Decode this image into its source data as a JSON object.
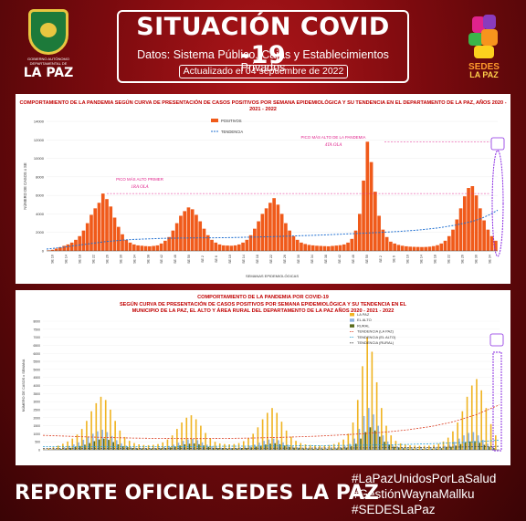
{
  "header": {
    "title": "SITUACIÓN COVID -19",
    "subtitle": "Datos: Sistema Público, Cajas y Establecimientos Privados",
    "updated": "Actualizado el  04 septiembre  de 2022",
    "logo_left_caption": "GOBIERNO AUTÓNOMO DEPARTAMENTAL DE",
    "logo_left_name": "LA PAZ",
    "logo_right_line1": "SEDES",
    "logo_right_line2": "LA PAZ"
  },
  "footer": {
    "report": "REPORTE OFICIAL SEDES LA PAZ",
    "hashtags": [
      "#LaPazUnidosPorLaSalud",
      "#GestiónWaynaMallku",
      "#SEDESLaPaz"
    ]
  },
  "colors": {
    "background": "#8b0c10",
    "positivos": "#f05a1a",
    "tendencia": "#1f6fd1",
    "lapaz": "#f0b423",
    "elalto": "#8fb3e0",
    "rural": "#5a6b1c",
    "annotation": "#e0238c"
  },
  "chart_data": [
    {
      "type": "bar",
      "title": "COMPORTAMIENTO DE LA PANDEMIA SEGÚN CURVA DE PRESENTACIÓN DE CASOS POSITIVOS POR SEMANA EPIDEMIOLÓGICA Y SU TENDENCIA EN EL DEPARTAMENTO DE LA PAZ, AÑOS 2020 - 2021 - 2022",
      "xlabel": "SEMANAS EPIDEMIOLÓGICAS",
      "ylabel": "NÚMERO DE CASOS x SE",
      "ylim": [
        0,
        14000
      ],
      "yticks": [
        0,
        2000,
        4000,
        6000,
        8000,
        10000,
        12000,
        14000
      ],
      "legend": [
        "POSITIVOS",
        "TENDENCIA"
      ],
      "legend_position": "top-center",
      "annotations": [
        {
          "text": "PICO MÁS ALTO PRIMER",
          "text2": "1RA OLA"
        },
        {
          "text": "PICO MÁS ALTO DE LA PANDEMIA",
          "text2": "4TA OLA"
        }
      ],
      "x_labels": [
        "SE 10",
        "SE 14",
        "SE 18",
        "SE 22",
        "SE 26",
        "SE 30",
        "SE 34",
        "SE 38",
        "SE 42",
        "SE 46",
        "SE 50",
        "SE 2",
        "SE 6",
        "SE 10",
        "SE 14",
        "SE 18",
        "SE 22",
        "SE 26",
        "SE 30",
        "SE 34",
        "SE 38",
        "SE 42",
        "SE 46",
        "SE 50",
        "SE 2",
        "SE 6",
        "SE 10",
        "SE 14",
        "SE 18",
        "SE 22",
        "SE 26",
        "SE 30",
        "SE 34"
      ],
      "series": [
        {
          "name": "POSITIVOS",
          "values": [
            60,
            120,
            250,
            400,
            550,
            700,
            900,
            1200,
            1600,
            2200,
            3000,
            3900,
            4600,
            5200,
            6200,
            5600,
            4800,
            3600,
            2600,
            1800,
            1200,
            900,
            700,
            600,
            560,
            520,
            500,
            540,
            600,
            800,
            1100,
            1500,
            2200,
            3000,
            3800,
            4300,
            4700,
            4500,
            3900,
            3200,
            2400,
            1700,
            1200,
            900,
            700,
            600,
            580,
            560,
            600,
            700,
            900,
            1200,
            1700,
            2400,
            3200,
            4000,
            4600,
            5200,
            5700,
            5000,
            4000,
            3000,
            2200,
            1600,
            1200,
            900,
            750,
            650,
            600,
            560,
            540,
            520,
            500,
            540,
            580,
            620,
            700,
            900,
            1300,
            2200,
            4000,
            7600,
            11800,
            9600,
            6400,
            3800,
            2300,
            1500,
            1000,
            800,
            650,
            560,
            500,
            460,
            440,
            430,
            420,
            430,
            460,
            520,
            620,
            800,
            1100,
            1600,
            2300,
            3400,
            4600,
            5900,
            6800,
            7000,
            6000,
            4600,
            3300,
            2300,
            1600,
            1100
          ]
        },
        {
          "name": "TENDENCIA",
          "values": [
            200,
            300,
            400,
            520,
            640,
            760,
            880,
            1000,
            1080,
            1160,
            1220,
            1260,
            1300,
            1330,
            1360,
            1380,
            1390,
            1400,
            1410,
            1420,
            1420,
            1430,
            1440,
            1460,
            1480,
            1500,
            1520,
            1540,
            1570,
            1600,
            1630,
            1660,
            1690,
            1720,
            1760,
            1800,
            1840,
            1880,
            1920,
            1960,
            2000,
            2050,
            2100,
            2160,
            2220,
            2300,
            2400,
            2500,
            2650,
            2800,
            3000,
            3200,
            3500,
            3900,
            4400
          ]
        }
      ]
    },
    {
      "type": "bar",
      "title": "COMPORTAMIENTO DE LA PANDEMIA POR COVID-19",
      "subtitle": "SEGÚN CURVA DE PRESENTACIÓN DE CASOS POSITIVOS POR SEMANA EPIDEMIOLÓGICA Y SU TENDENCIA EN EL  MUNICIPIO DE LA PAZ, EL ALTO Y ÁREA RURAL DEL DEPARTAMENTO DE LA PAZ AÑOS 2020 - 2021 - 2022",
      "ylabel": "NÚMERO DE CASOS x SEMANA",
      "ylim": [
        0,
        8000
      ],
      "yticks": [
        0,
        500,
        1000,
        1500,
        2000,
        2500,
        3000,
        3500,
        4000,
        4500,
        5000,
        5500,
        6000,
        6500,
        7000,
        7500,
        8000
      ],
      "legend": [
        "LA PAZ",
        "EL ALTO",
        "RURAL",
        "TENDENCIA (LA PAZ)",
        "TENDENCIA (EL ALTO)",
        "TENDENCIA (RURAL)"
      ],
      "legend_position": "top-right",
      "series": [
        {
          "name": "LA PAZ",
          "values": [
            40,
            90,
            160,
            260,
            380,
            520,
            700,
            950,
            1300,
            1800,
            2400,
            2900,
            3300,
            3100,
            2500,
            1800,
            1200,
            800,
            560,
            420,
            340,
            300,
            290,
            310,
            360,
            460,
            640,
            900,
            1300,
            1700,
            2000,
            2150,
            1900,
            1500,
            1050,
            720,
            500,
            400,
            360,
            340,
            360,
            420,
            540,
            740,
            1000,
            1400,
            1900,
            2300,
            2600,
            2300,
            1750,
            1200,
            820,
            560,
            420,
            340,
            300,
            280,
            270,
            280,
            300,
            360,
            460,
            640,
            1000,
            1700,
            3100,
            5200,
            7000,
            6100,
            4200,
            2600,
            1500,
            900,
            560,
            400,
            320,
            280,
            260,
            250,
            250,
            260,
            300,
            380,
            520,
            760,
            1150,
            1700,
            2400,
            3300,
            4000,
            4400,
            3700,
            2600,
            1600,
            900
          ]
        },
        {
          "name": "EL ALTO",
          "values": [
            10,
            30,
            60,
            100,
            160,
            240,
            340,
            460,
            620,
            800,
            1000,
            1150,
            1250,
            1100,
            860,
            600,
            400,
            260,
            180,
            140,
            120,
            110,
            110,
            120,
            140,
            180,
            240,
            320,
            440,
            560,
            640,
            680,
            600,
            460,
            320,
            220,
            160,
            130,
            120,
            120,
            130,
            150,
            190,
            250,
            330,
            440,
            560,
            640,
            700,
            600,
            460,
            320,
            220,
            160,
            130,
            110,
            100,
            100,
            100,
            100,
            110,
            130,
            170,
            240,
            380,
            700,
            1300,
            2100,
            2600,
            2200,
            1500,
            900,
            520,
            320,
            220,
            170,
            140,
            120,
            110,
            110,
            110,
            120,
            140,
            180,
            250,
            350,
            500,
            700,
            900,
            1050,
            1100,
            900,
            620,
            380,
            220
          ]
        },
        {
          "name": "RURAL",
          "values": [
            5,
            15,
            30,
            50,
            80,
            120,
            170,
            240,
            320,
            420,
            540,
            640,
            700,
            620,
            480,
            340,
            230,
            160,
            110,
            90,
            80,
            70,
            70,
            80,
            90,
            110,
            150,
            200,
            270,
            340,
            380,
            400,
            350,
            270,
            190,
            130,
            100,
            80,
            70,
            70,
            80,
            90,
            110,
            150,
            200,
            260,
            330,
            380,
            410,
            350,
            270,
            190,
            130,
            100,
            80,
            70,
            60,
            60,
            60,
            60,
            70,
            80,
            100,
            140,
            220,
            380,
            700,
            1100,
            1400,
            1200,
            820,
            500,
            300,
            190,
            130,
            100,
            80,
            70,
            60,
            60,
            60,
            70,
            80,
            100,
            140,
            190,
            260,
            360,
            460,
            520,
            540,
            440,
            310,
            190,
            110
          ]
        },
        {
          "name": "TENDENCIA (LA PAZ)",
          "values": [
            900,
            850,
            800,
            760,
            730,
            710,
            700,
            700,
            710,
            730,
            760,
            800,
            850,
            920,
            1000,
            1100,
            1250,
            1450,
            1750,
            2200,
            2800
          ]
        },
        {
          "name": "TENDENCIA (EL ALTO)",
          "values": [
            200,
            200,
            200,
            200,
            200,
            200,
            200,
            210,
            220,
            230,
            240,
            250,
            260,
            270,
            290,
            310,
            340,
            380,
            430,
            500,
            600
          ]
        },
        {
          "name": "TENDENCIA (RURAL)",
          "values": [
            80,
            80,
            80,
            80,
            80,
            80,
            80,
            85,
            90,
            95,
            100,
            105,
            110,
            115,
            120,
            130,
            140,
            150,
            170,
            190,
            220
          ]
        }
      ]
    }
  ]
}
